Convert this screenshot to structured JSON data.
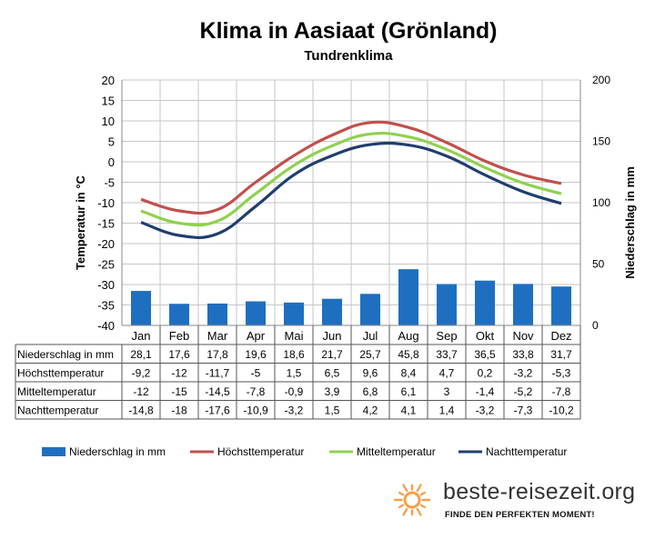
{
  "chart_data": {
    "type": "bar+line",
    "title": "Klima in Aasiaat (Grönland)",
    "subtitle": "Tundrenklima",
    "ylabel_left": "Temperatur in °C",
    "ylabel_right": "Niederschlag in mm",
    "ylim_left": [
      -40,
      20
    ],
    "ylim_right": [
      0,
      200
    ],
    "yticks_left": [
      "20",
      "15",
      "10",
      "5",
      "0",
      "-5",
      "-10",
      "-15",
      "-20",
      "-25",
      "-30",
      "-35",
      "-40"
    ],
    "yticks_right": [
      "200",
      "150",
      "100",
      "50",
      "0"
    ],
    "categories": [
      "Jan",
      "Feb",
      "Mar",
      "Apr",
      "Mai",
      "Jun",
      "Jul",
      "Aug",
      "Sep",
      "Okt",
      "Nov",
      "Dez"
    ],
    "grid": true,
    "legend_position": "bottom",
    "series": [
      {
        "name": "Niederschlag in mm",
        "kind": "bar",
        "axis": "right",
        "color": "#1f6fc0",
        "values": [
          28.1,
          17.6,
          17.8,
          19.6,
          18.6,
          21.7,
          25.7,
          45.8,
          33.7,
          36.5,
          33.8,
          31.7
        ],
        "labels": [
          "28,1",
          "17,6",
          "17,8",
          "19,6",
          "18,6",
          "21,7",
          "25,7",
          "45,8",
          "33,7",
          "36,5",
          "33,8",
          "31,7"
        ]
      },
      {
        "name": "Höchsttemperatur",
        "kind": "line",
        "axis": "left",
        "color": "#c0504d",
        "values": [
          -9.2,
          -12,
          -11.7,
          -5,
          1.5,
          6.5,
          9.6,
          8.4,
          4.7,
          0.2,
          -3.2,
          -5.3
        ],
        "labels": [
          "-9,2",
          "-12",
          "-11,7",
          "-5",
          "1,5",
          "6,5",
          "9,6",
          "8,4",
          "4,7",
          "0,2",
          "-3,2",
          "-5,3"
        ]
      },
      {
        "name": "Mitteltemperatur",
        "kind": "line",
        "axis": "left",
        "color": "#8fd14f",
        "values": [
          -12,
          -15,
          -14.5,
          -7.8,
          -0.9,
          3.9,
          6.8,
          6.1,
          3,
          -1.4,
          -5.2,
          -7.8
        ],
        "labels": [
          "-12",
          "-15",
          "-14,5",
          "-7,8",
          "-0,9",
          "3,9",
          "6,8",
          "6,1",
          "3",
          "-1,4",
          "-5,2",
          "-7,8"
        ]
      },
      {
        "name": "Nachttemperatur",
        "kind": "line",
        "axis": "left",
        "color": "#1f3e6e",
        "values": [
          -14.8,
          -18,
          -17.6,
          -10.9,
          -3.2,
          1.5,
          4.2,
          4.1,
          1.4,
          -3.2,
          -7.3,
          -10.2
        ],
        "labels": [
          "-14,8",
          "-18",
          "-17,6",
          "-10,9",
          "-3,2",
          "1,5",
          "4,2",
          "4,1",
          "1,4",
          "-3,2",
          "-7,3",
          "-10,2"
        ]
      }
    ]
  },
  "branding": {
    "site": "beste-reisezeit.org",
    "tagline": "FINDE DEN PERFEKTEN MOMENT!",
    "colors": {
      "sun": "#f5a04a"
    }
  }
}
